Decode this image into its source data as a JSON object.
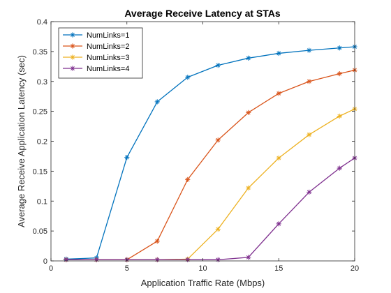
{
  "chart_data": {
    "type": "line",
    "title": "Average Receive Latency at STAs",
    "xlabel": "Application Traffic Rate (Mbps)",
    "ylabel": "Average Receive Application Latency (sec)",
    "xlim": [
      0,
      20
    ],
    "ylim": [
      0,
      0.4
    ],
    "xticks": [
      0,
      5,
      10,
      15,
      20
    ],
    "yticks": [
      0,
      0.05,
      0.1,
      0.15,
      0.2,
      0.25,
      0.3,
      0.35,
      0.4
    ],
    "xtick_labels": [
      "0",
      "5",
      "10",
      "15",
      "20"
    ],
    "ytick_labels": [
      "0",
      "0.05",
      "0.1",
      "0.15",
      "0.2",
      "0.25",
      "0.3",
      "0.35",
      "0.4"
    ],
    "grid": false,
    "legend_position": "top-left",
    "x": [
      1,
      3,
      5,
      7,
      9,
      11,
      13,
      15,
      17,
      19,
      20
    ],
    "series": [
      {
        "name": "NumLinks=1",
        "color": "#0072BD",
        "values": [
          0.003,
          0.005,
          0.173,
          0.266,
          0.307,
          0.327,
          0.339,
          0.347,
          0.352,
          0.356,
          0.358
        ]
      },
      {
        "name": "NumLinks=2",
        "color": "#D95319",
        "values": [
          0.002,
          0.002,
          0.002,
          0.033,
          0.136,
          0.202,
          0.248,
          0.28,
          0.3,
          0.313,
          0.319
        ]
      },
      {
        "name": "NumLinks=3",
        "color": "#EDB120",
        "values": [
          0.002,
          0.002,
          0.002,
          0.002,
          0.003,
          0.053,
          0.122,
          0.172,
          0.211,
          0.242,
          0.254
        ]
      },
      {
        "name": "NumLinks=4",
        "color": "#7E2F8E",
        "values": [
          0.002,
          0.002,
          0.002,
          0.002,
          0.002,
          0.002,
          0.006,
          0.062,
          0.115,
          0.155,
          0.172
        ]
      }
    ]
  }
}
